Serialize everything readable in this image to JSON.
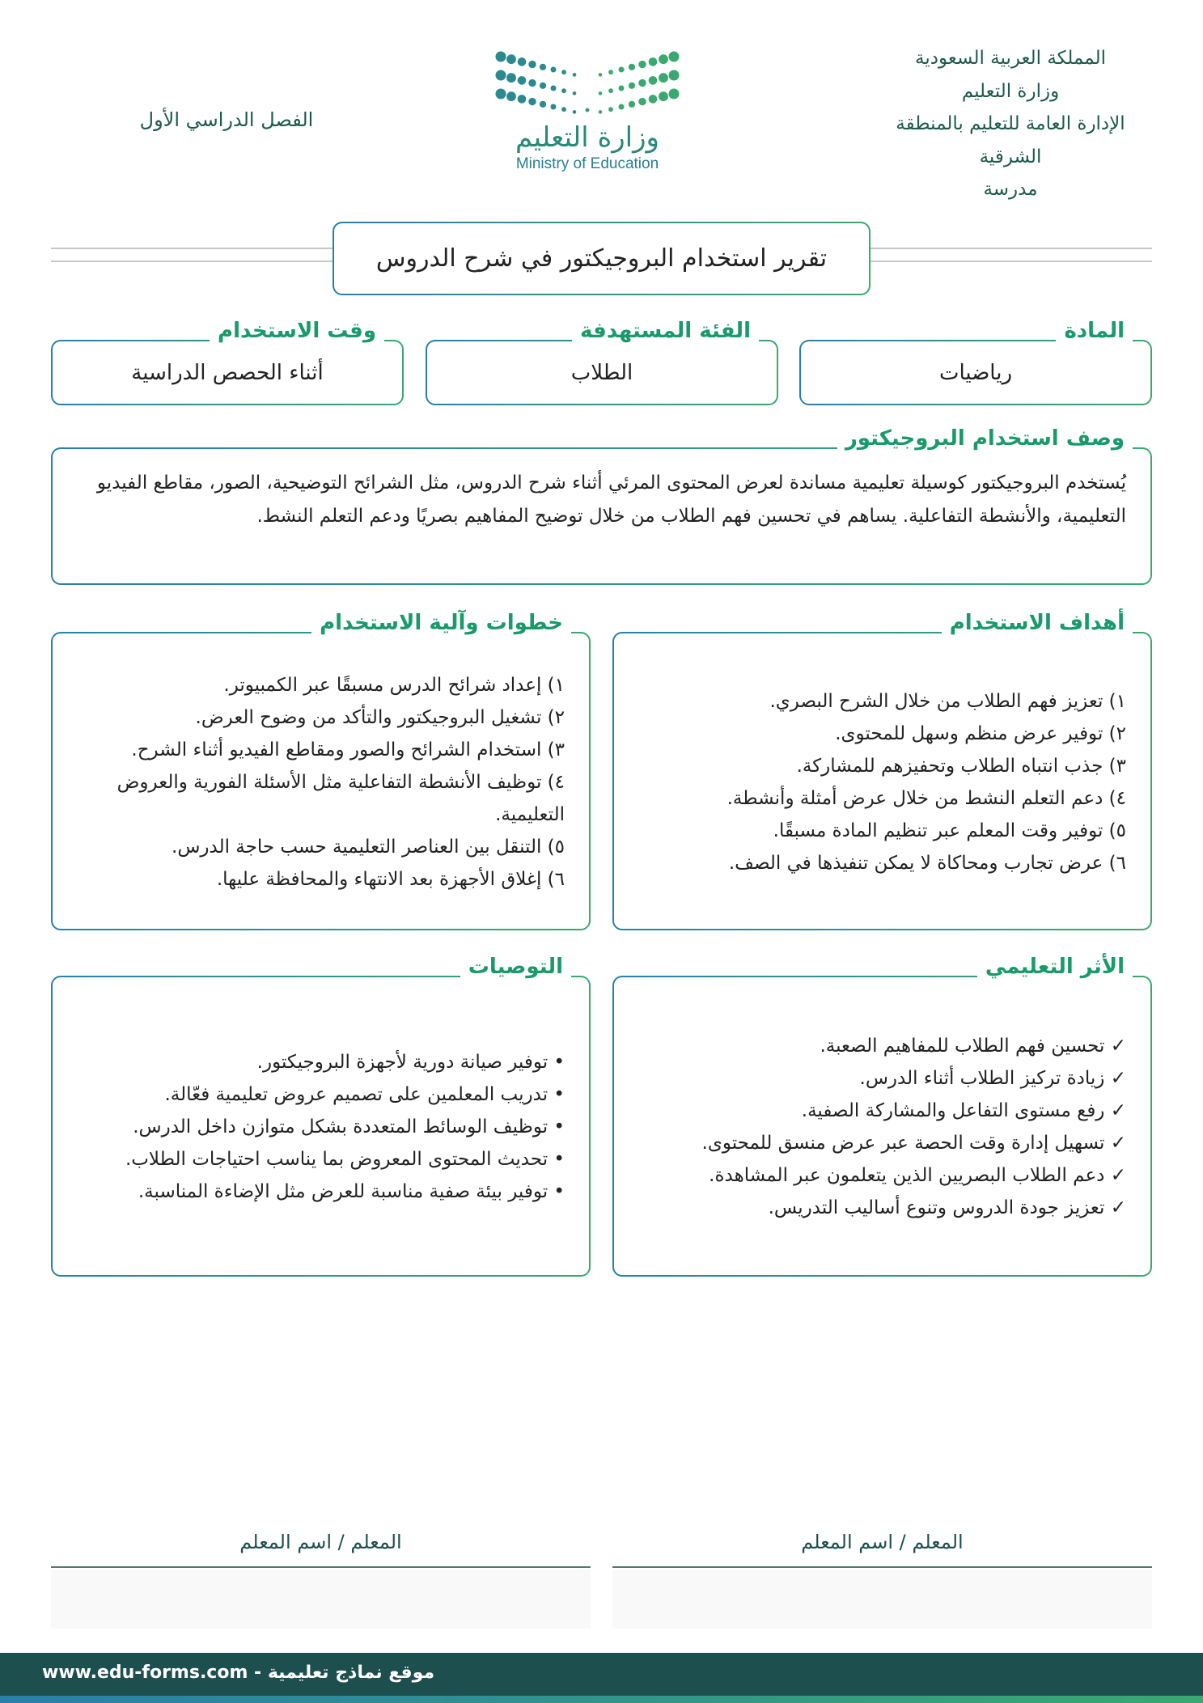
{
  "header": {
    "right_lines": [
      "المملكة العربية السعودية",
      "وزارة التعليم",
      "الإدارة العامة للتعليم بالمنطقة",
      "الشرقية",
      "مدرسة"
    ],
    "semester": "الفصل الدراسي الأول",
    "logo": {
      "arabic": "وزارة التعليم",
      "english": "Ministry of Education"
    }
  },
  "title": "تقرير استخدام البروجيكتور في شرح الدروس",
  "fields": [
    {
      "label": "المادة",
      "value": "رياضيات"
    },
    {
      "label": "الفئة المستهدفة",
      "value": "الطلاب"
    },
    {
      "label": "وقت الاستخدام",
      "value": "أثناء الحصص الدراسية"
    }
  ],
  "description": {
    "label": "وصف استخدام البروجيكتور",
    "text": "يُستخدم البروجيكتور كوسيلة تعليمية مساندة لعرض المحتوى المرئي أثناء شرح الدروس، مثل الشرائح التوضيحية، الصور، مقاطع الفيديو التعليمية، والأنشطة التفاعلية. يساهم في تحسين فهم الطلاب من خلال توضيح المفاهيم بصريًا ودعم التعلم النشط."
  },
  "goals": {
    "label": "أهداف الاستخدام",
    "items": [
      "١) تعزيز فهم الطلاب من خلال الشرح البصري.",
      "٢) توفير عرض منظم وسهل للمحتوى.",
      "٣) جذب انتباه الطلاب وتحفيزهم للمشاركة.",
      "٤) دعم التعلم النشط من خلال عرض أمثلة وأنشطة.",
      "٥) توفير وقت المعلم عبر تنظيم المادة مسبقًا.",
      "٦) عرض تجارب ومحاكاة لا يمكن تنفيذها في الصف."
    ]
  },
  "steps": {
    "label": "خطوات وآلية الاستخدام",
    "items": [
      "١) إعداد شرائح الدرس مسبقًا عبر الكمبيوتر.",
      "٢) تشغيل البروجيكتور والتأكد من وضوح العرض.",
      "٣) استخدام الشرائح والصور ومقاطع الفيديو أثناء الشرح.",
      "٤) توظيف الأنشطة التفاعلية مثل الأسئلة الفورية والعروض التعليمية.",
      "٥) التنقل بين العناصر التعليمية حسب حاجة الدرس.",
      "٦) إغلاق الأجهزة بعد الانتهاء والمحافظة عليها."
    ]
  },
  "impact": {
    "label": "الأثر التعليمي",
    "items": [
      "✓ تحسين فهم الطلاب للمفاهيم الصعبة.",
      "✓ زيادة تركيز الطلاب أثناء الدرس.",
      "✓ رفع مستوى التفاعل والمشاركة الصفية.",
      "✓ تسهيل إدارة وقت الحصة عبر عرض منسق للمحتوى.",
      "✓ دعم الطلاب البصريين الذين يتعلمون عبر المشاهدة.",
      "✓ تعزيز جودة الدروس وتنوع أساليب التدريس."
    ]
  },
  "recommendations": {
    "label": "التوصيات",
    "items": [
      "• توفير صيانة دورية لأجهزة البروجيكتور.",
      "• تدريب المعلمين على تصميم عروض تعليمية فعّالة.",
      "• توظيف الوسائط المتعددة بشكل متوازن داخل الدرس.",
      "• تحديث المحتوى المعروض بما يناسب احتياجات الطلاب.",
      "• توفير بيئة صفية مناسبة للعرض مثل الإضاءة المناسبة."
    ]
  },
  "signatures": [
    {
      "label": "المعلم / اسم المعلم"
    },
    {
      "label": "المعلم / اسم المعلم"
    }
  ],
  "footer": "موقع نماذج تعليمية - www.edu-forms.com"
}
